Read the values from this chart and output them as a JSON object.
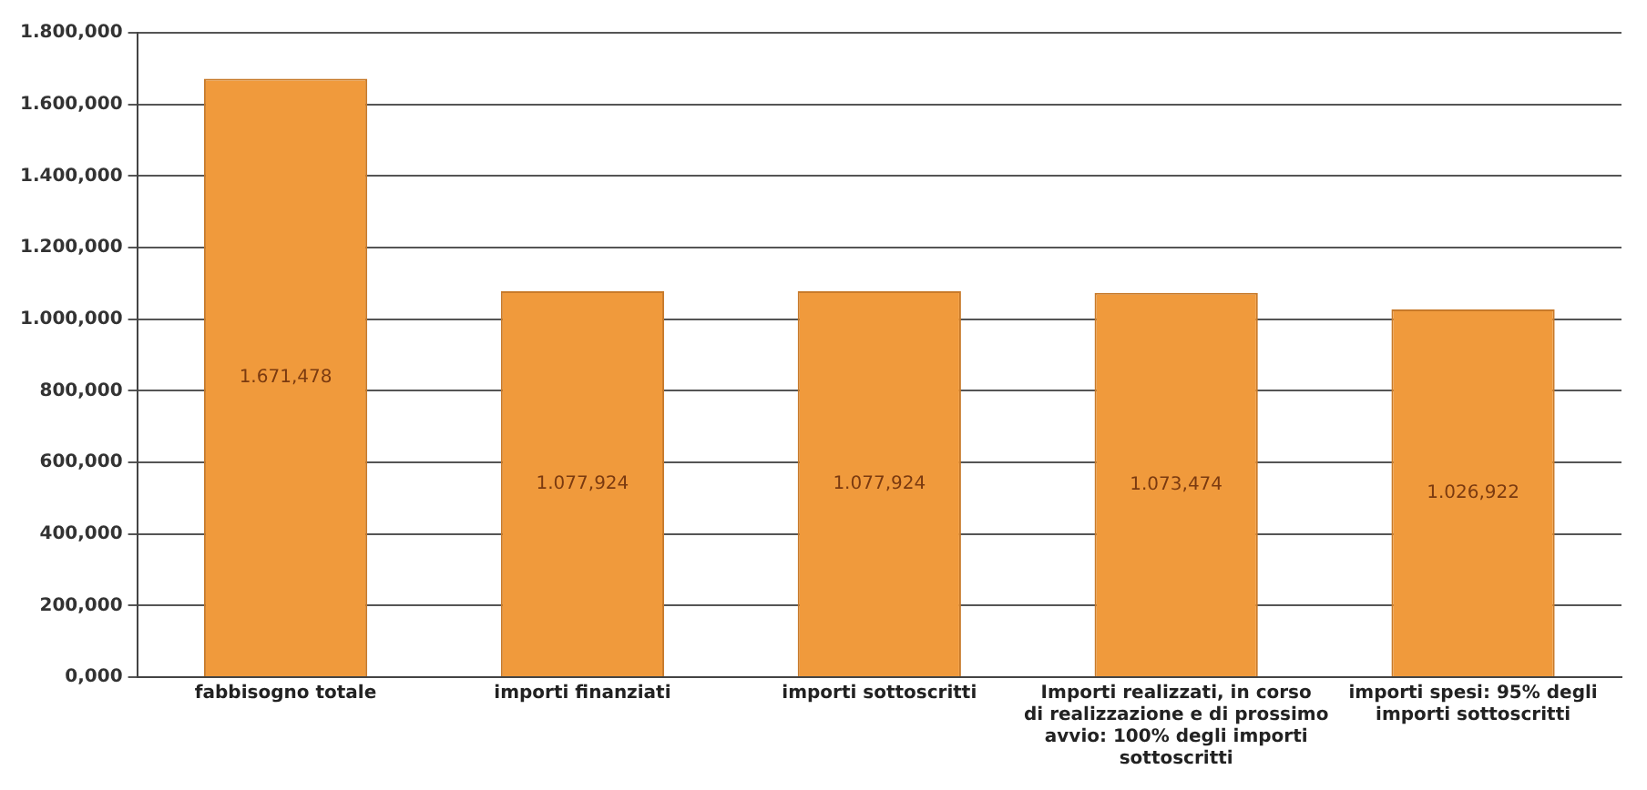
{
  "chart_data": {
    "type": "bar",
    "categories": [
      "fabbisogno totale",
      "importi finanziati",
      "importi sottoscritti",
      "Importi realizzati, in corso di realizzazione e di prossimo avvio: 100% degli importi sottoscritti",
      "importi spesi: 95% degli importi sottoscritti"
    ],
    "values": [
      1671.478,
      1077.924,
      1077.924,
      1073.474,
      1026.922
    ],
    "value_labels": [
      "1.671,478",
      "1.077,924",
      "1.077,924",
      "1.073,474",
      "1.026,922"
    ],
    "color": "#f09a3c",
    "ylim": [
      0,
      1800
    ],
    "yticks": [
      {
        "value": 0,
        "label": "0,000"
      },
      {
        "value": 200,
        "label": "200,000"
      },
      {
        "value": 400,
        "label": "400,000"
      },
      {
        "value": 600,
        "label": "600,000"
      },
      {
        "value": 800,
        "label": "800,000"
      },
      {
        "value": 1000,
        "label": "1.000,000"
      },
      {
        "value": 1200,
        "label": "1.200,000"
      },
      {
        "value": 1400,
        "label": "1.400,000"
      },
      {
        "value": 1600,
        "label": "1.600,000"
      },
      {
        "value": 1800,
        "label": "1.800,000"
      }
    ],
    "grid": "y",
    "legend": false
  }
}
